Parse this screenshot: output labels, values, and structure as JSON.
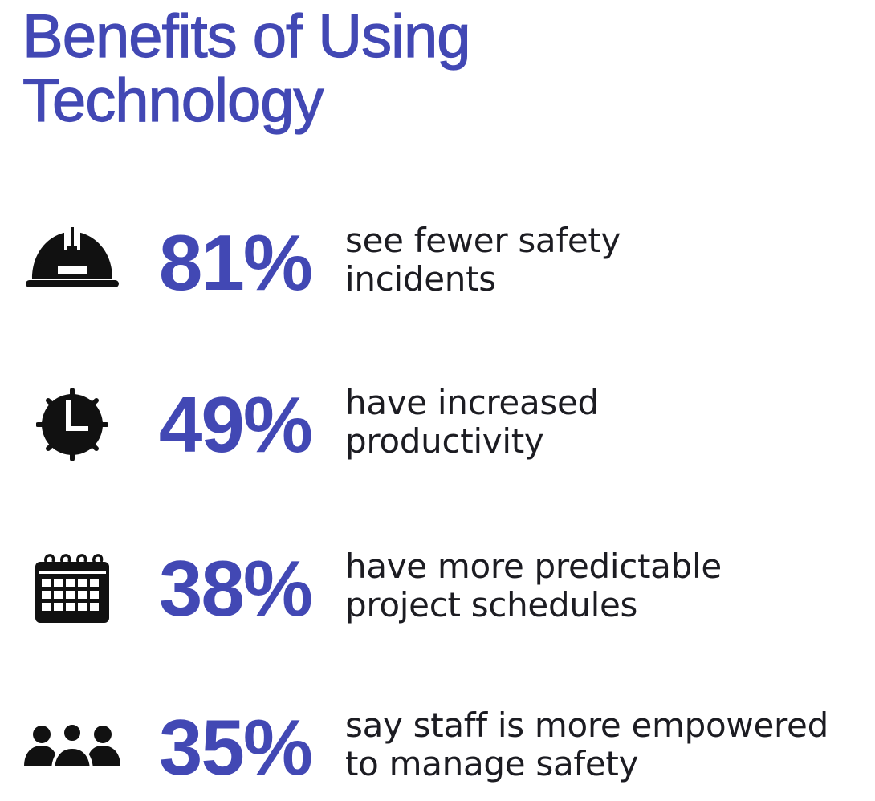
{
  "title": {
    "line1": "Benefits of Using",
    "line2": "Technology"
  },
  "colors": {
    "accent": "#4248b4",
    "text": "#1c1c22",
    "icon": "#111111"
  },
  "stats": [
    {
      "value": "81%",
      "line1": "see fewer safety",
      "line2": "incidents",
      "icon": "hard-hat-icon"
    },
    {
      "value": "49%",
      "line1": "have increased",
      "line2": "productivity",
      "icon": "clock-icon"
    },
    {
      "value": "38%",
      "line1": "have more predictable",
      "line2": "project schedules",
      "icon": "calendar-icon"
    },
    {
      "value": "35%",
      "line1": "say staff is more empowered",
      "line2": "to manage safety",
      "icon": "team-icon"
    }
  ]
}
